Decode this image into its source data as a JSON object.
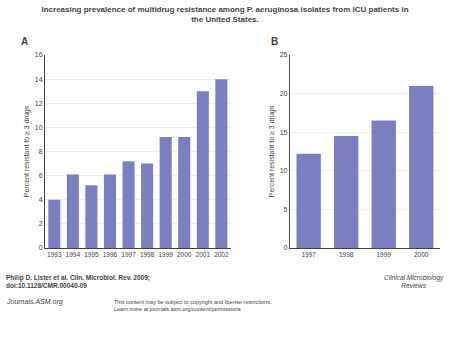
{
  "title": "Increasing prevalence of multidrug resistance among P. aeruginosa isolates from ICU patients in\nthe United States.",
  "annotations": [
    "Philip D. Lister et al. Clin. Microbiol. Rev. 2009;\ndoi:10.1128/CMR.00040-09",
    "Journals.ASM.org",
    "This content may be subject to copyright and license restrictions.\nLearn more at journals.asm.org/content/permissions",
    "Clinical Microbiology\nReviews"
  ],
  "chart_data": [
    {
      "type": "bar",
      "title": "A",
      "categories": [
        "1993",
        "1994",
        "1995",
        "1996",
        "1997",
        "1998",
        "1999",
        "2000",
        "2001",
        "2002"
      ],
      "values": [
        4.0,
        6.1,
        5.2,
        6.1,
        7.2,
        7.0,
        9.2,
        9.2,
        13.0,
        14.0
      ],
      "color": "#7b7fbf",
      "ylabel": "Percent resistant to ≥ 3 drugs",
      "ylim": [
        0,
        16
      ],
      "yticks": [
        0,
        2,
        4,
        6,
        8,
        10,
        12,
        14,
        16
      ],
      "grid": true
    },
    {
      "type": "bar",
      "title": "B",
      "categories": [
        "1997",
        "1998",
        "1999",
        "2000"
      ],
      "values": [
        12.2,
        14.5,
        16.5,
        21.0
      ],
      "color": "#7b7fbf",
      "ylabel": "Percent resistant to ≥ 3 drugs",
      "ylim": [
        0,
        25
      ],
      "yticks": [
        0,
        5,
        10,
        15,
        20,
        25
      ],
      "grid": true
    }
  ]
}
